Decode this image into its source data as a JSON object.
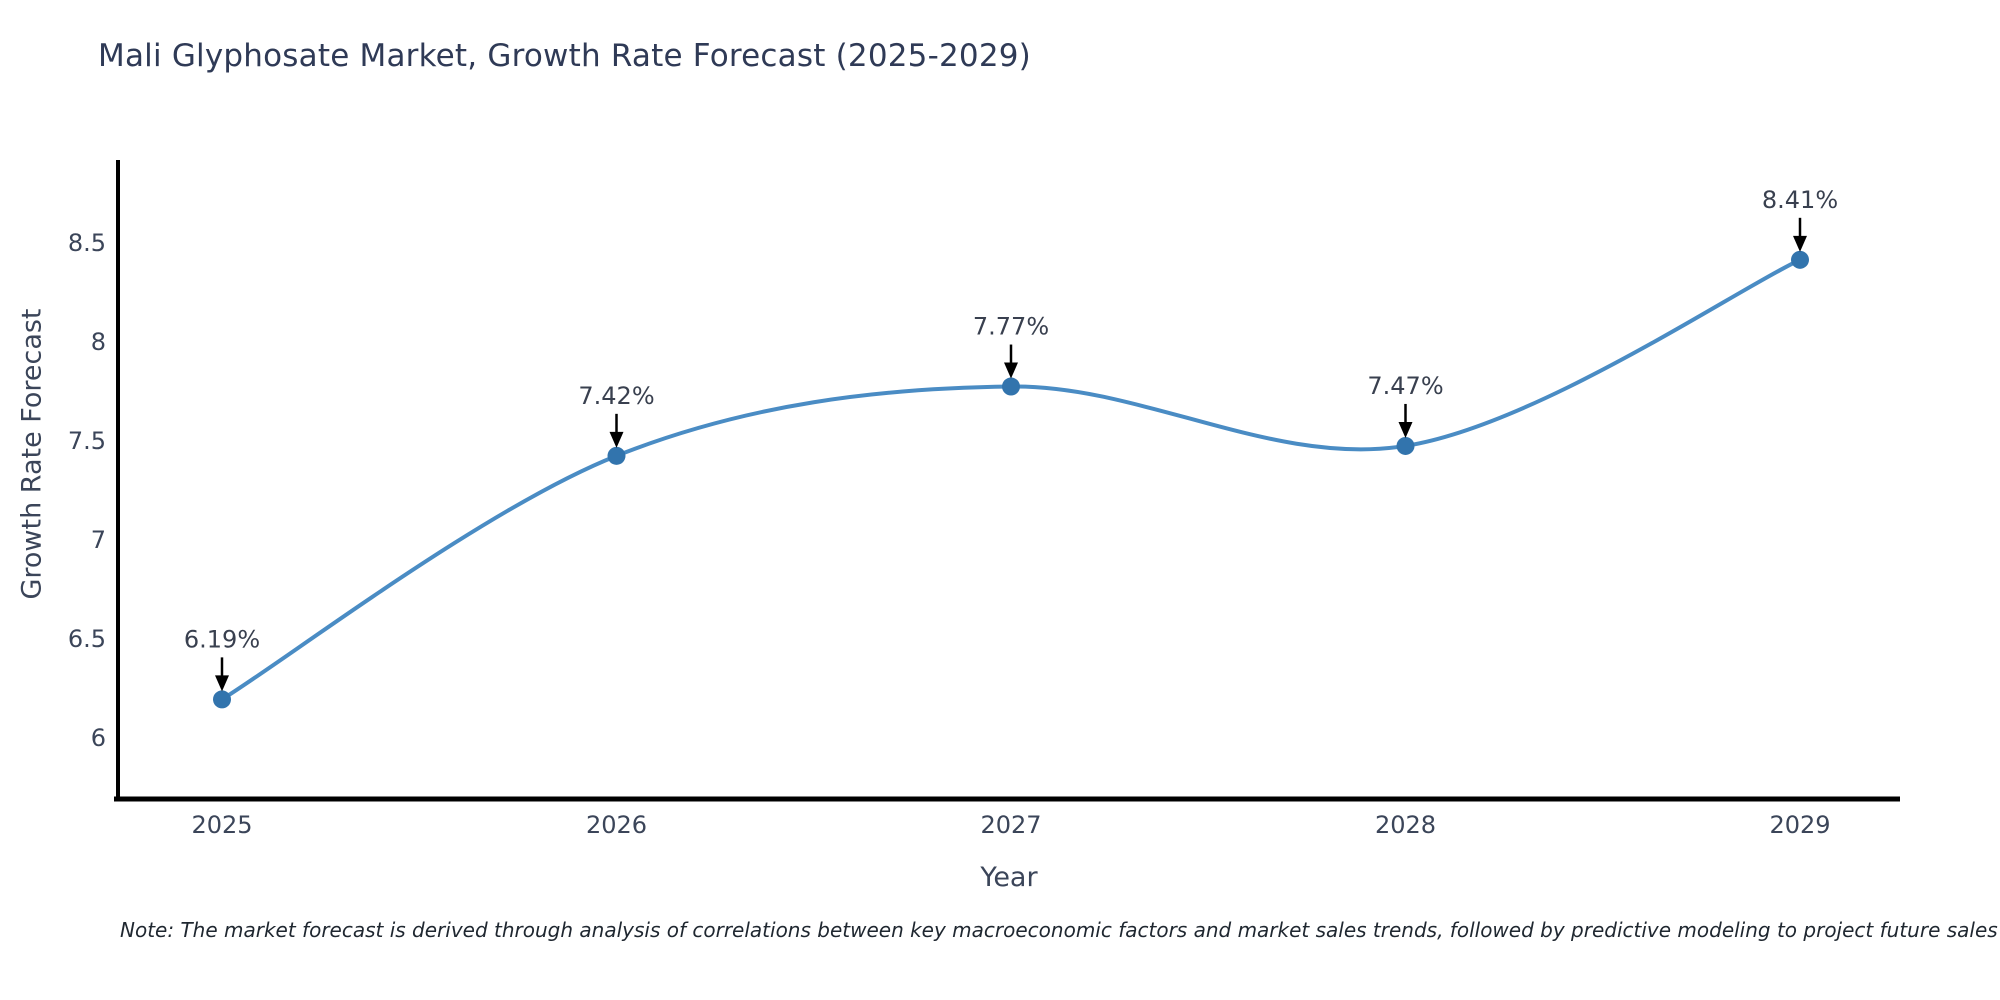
{
  "title": "Mali Glyphosate Market, Growth Rate Forecast (2025-2029)",
  "note": "Note: The market forecast is derived through analysis of correlations between key macroeconomic factors and market sales trends, followed by predictive modeling to project future sales",
  "chart_data": {
    "type": "line",
    "title": "Mali Glyphosate Market, Growth Rate Forecast (2025-2029)",
    "xlabel": "Year",
    "ylabel": "Growth Rate Forecast",
    "x": [
      2025,
      2026,
      2027,
      2028,
      2029
    ],
    "x_tick_labels": [
      "2025",
      "2026",
      "2027",
      "2028",
      "2029"
    ],
    "series": [
      {
        "name": "Growth Rate Forecast",
        "values": [
          6.19,
          7.42,
          7.77,
          7.47,
          8.41
        ],
        "point_labels": [
          "6.19%",
          "7.42%",
          "7.77%",
          "7.47%",
          "8.41%"
        ]
      }
    ],
    "yticks": [
      6,
      6.5,
      7,
      7.5,
      8,
      8.5
    ],
    "ylim": [
      5.79,
      8.92
    ],
    "grid": false,
    "legend": "none",
    "line_style": "smooth-spline",
    "marker": "circle",
    "annotations": "value labels with downward arrows above each point",
    "colors": {
      "line": "#4a8cc4",
      "marker": "#3274ad",
      "axis": "#000000",
      "tick_text": "#3b4559",
      "title_text": "#2f3a56",
      "annotation_text": "#39404f",
      "arrow": "#000000"
    }
  }
}
